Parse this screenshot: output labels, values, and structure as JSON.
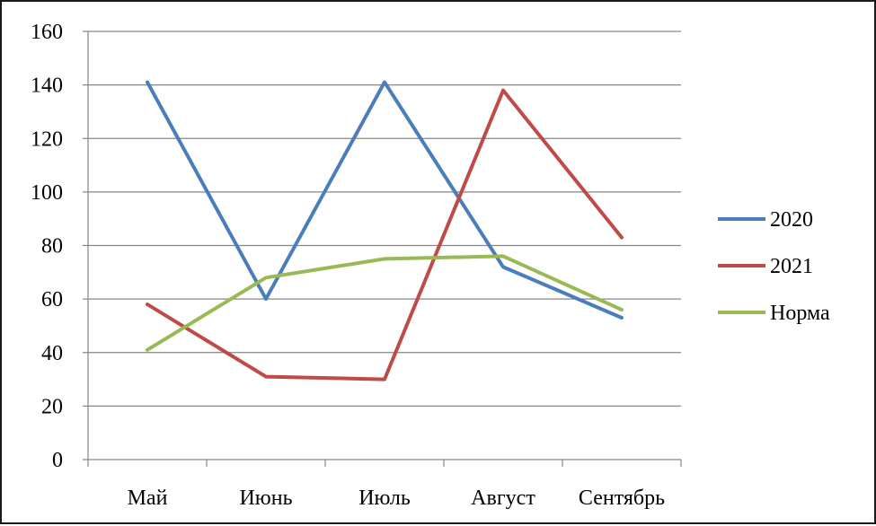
{
  "chart_data": {
    "type": "line",
    "title": "",
    "xlabel": "",
    "ylabel": "",
    "categories": [
      "Май",
      "Июнь",
      "Июль",
      "Август",
      "Сентябрь"
    ],
    "ylim": [
      0,
      160
    ],
    "yticks": [
      0,
      20,
      40,
      60,
      80,
      100,
      120,
      140,
      160
    ],
    "grid": true,
    "legend_position": "right",
    "series": [
      {
        "name": "2020",
        "values": [
          141,
          60,
          141,
          72,
          53
        ],
        "color": "#4a7ebb"
      },
      {
        "name": "2021",
        "values": [
          58,
          31,
          30,
          138,
          83
        ],
        "color": "#be4b48"
      },
      {
        "name": "Норма",
        "values": [
          41,
          68,
          75,
          76,
          56
        ],
        "color": "#98b954"
      }
    ]
  }
}
